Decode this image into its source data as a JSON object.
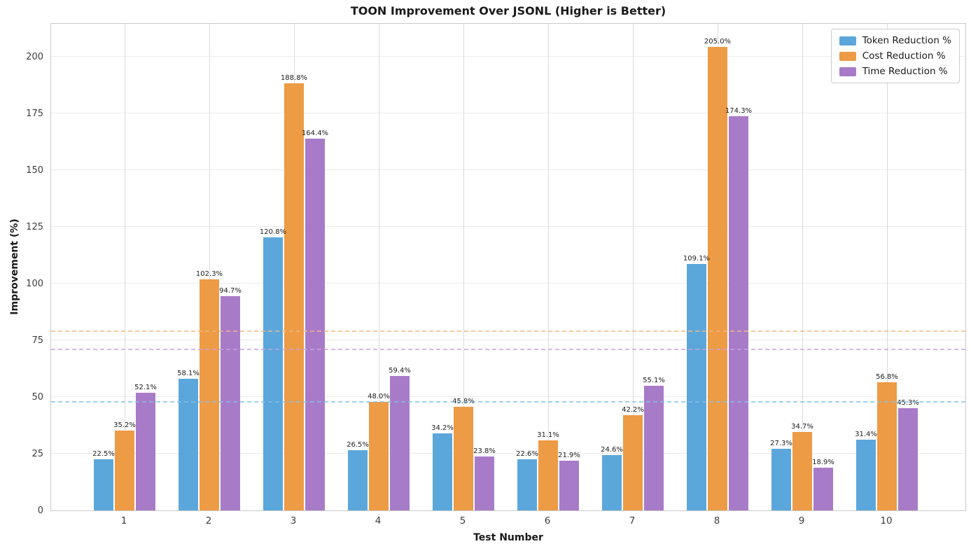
{
  "title": "TOON Improvement Over JSONL (Higher is Better)",
  "chart_data": {
    "type": "bar",
    "title": "TOON Improvement Over JSONL (Higher is Better)",
    "xlabel": "Test Number",
    "ylabel": "Improvement (%)",
    "categories": [
      "1",
      "2",
      "3",
      "4",
      "5",
      "6",
      "7",
      "8",
      "9",
      "10"
    ],
    "series": [
      {
        "name": "Token Reduction %",
        "color": "#5BA7DC",
        "mean_line_color": "#85C1E8",
        "values": [
          22.5,
          58.1,
          120.8,
          26.5,
          34.2,
          22.6,
          24.6,
          109.1,
          27.3,
          31.4
        ],
        "mean": 47.7
      },
      {
        "name": "Cost Reduction %",
        "color": "#ED9B45",
        "mean_line_color": "#F3B87E",
        "values": [
          35.2,
          102.3,
          188.8,
          48.0,
          45.8,
          31.1,
          42.2,
          205.0,
          34.7,
          56.8
        ],
        "mean": 79.0
      },
      {
        "name": "Time Reduction %",
        "color": "#A87BC8",
        "mean_line_color": "#C8A2DE",
        "values": [
          52.1,
          94.7,
          164.4,
          59.4,
          23.8,
          21.9,
          55.1,
          174.3,
          18.9,
          45.3
        ],
        "mean": 71.0
      }
    ],
    "value_label_suffix": "%",
    "ylim": [
      0,
      215.25
    ],
    "yticks": [
      0,
      25,
      50,
      75,
      100,
      125,
      150,
      175,
      200
    ],
    "grid": true,
    "legend_position": "upper right"
  }
}
